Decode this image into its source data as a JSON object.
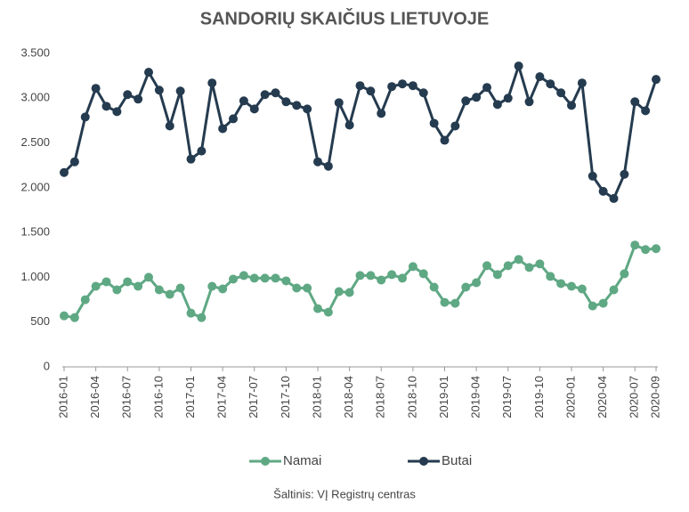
{
  "chart_data": {
    "type": "line",
    "title": "SANDORIŲ SKAIČIUS LIETUVOJE",
    "source": "Šaltinis: VĮ Registrų centras",
    "categories": [
      "2016-01",
      null,
      null,
      "2016-04",
      null,
      null,
      "2016-07",
      null,
      null,
      "2016-10",
      null,
      null,
      "2017-01",
      null,
      null,
      "2017-04",
      null,
      null,
      "2017-07",
      null,
      null,
      "2017-10",
      null,
      null,
      "2018-01",
      null,
      null,
      "2018-04",
      null,
      null,
      "2018-07",
      null,
      null,
      "2018-10",
      null,
      null,
      "2019-01",
      null,
      null,
      "2019-04",
      null,
      null,
      "2019-07",
      null,
      null,
      "2019-10",
      null,
      null,
      "2020-01",
      null,
      null,
      "2020-04",
      null,
      null,
      "2020-07",
      null,
      "2020-09"
    ],
    "series": [
      {
        "name": "Namai",
        "color": "#5fa884",
        "values": [
          570,
          550,
          750,
          900,
          950,
          860,
          950,
          900,
          1000,
          860,
          810,
          880,
          600,
          550,
          900,
          870,
          980,
          1020,
          990,
          990,
          990,
          960,
          880,
          880,
          650,
          610,
          840,
          830,
          1020,
          1020,
          970,
          1030,
          990,
          1120,
          1040,
          890,
          720,
          710,
          890,
          940,
          1130,
          1030,
          1130,
          1200,
          1110,
          1150,
          1010,
          930,
          900,
          870,
          680,
          710,
          860,
          1040,
          1360,
          1310,
          1320
        ]
      },
      {
        "name": "Butai",
        "color": "#253b4f",
        "values": [
          2170,
          2290,
          2790,
          3110,
          2910,
          2850,
          3040,
          2990,
          3290,
          3090,
          2690,
          3080,
          2320,
          2410,
          3170,
          2660,
          2770,
          2970,
          2880,
          3040,
          3060,
          2960,
          2920,
          2880,
          2290,
          2240,
          2950,
          2700,
          3140,
          3080,
          2830,
          3130,
          3160,
          3140,
          3060,
          2720,
          2530,
          2690,
          2970,
          3010,
          3120,
          2930,
          3000,
          3360,
          2960,
          3240,
          3160,
          3060,
          2920,
          3170,
          2130,
          1960,
          1880,
          2150,
          2960,
          2860,
          3210
        ]
      }
    ],
    "ylim": [
      0,
      3500
    ],
    "yticks": [
      0,
      500,
      {
        "value": 1000,
        "label": "1.000"
      },
      {
        "value": 1500,
        "label": "1.500"
      },
      {
        "value": 2000,
        "label": "2.000"
      },
      {
        "value": 2500,
        "label": "2.500"
      },
      {
        "value": 3000,
        "label": "3.000"
      },
      {
        "value": 3500,
        "label": "3.500"
      }
    ],
    "grid": false,
    "legend": "bottom"
  }
}
